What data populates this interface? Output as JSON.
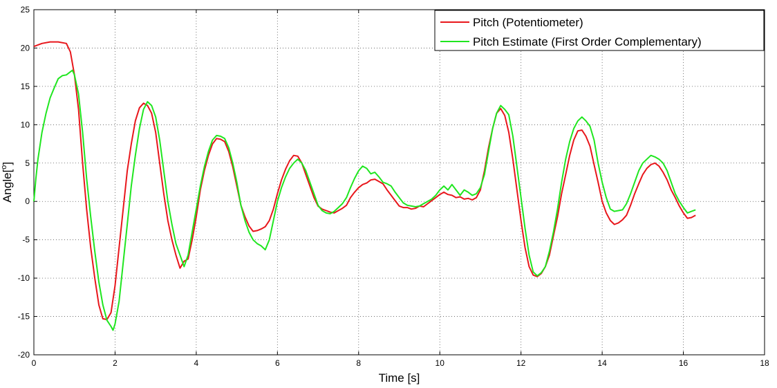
{
  "chart_data": {
    "type": "line",
    "title": "",
    "xlabel": "Time [s]",
    "ylabel": "Angle[",
    "ylabel_sup": "o",
    "ylabel_close": "]",
    "xlim": [
      0,
      18
    ],
    "ylim": [
      -20,
      25
    ],
    "xticks": [
      0,
      2,
      4,
      6,
      8,
      10,
      12,
      14,
      16,
      18
    ],
    "yticks": [
      -20,
      -15,
      -10,
      -5,
      0,
      5,
      10,
      15,
      20,
      25
    ],
    "grid": true,
    "legend_position": "top-right",
    "series": [
      {
        "name": "Pitch (Potentiometer)",
        "color": "#e8161b",
        "points": [
          [
            0,
            20.2
          ],
          [
            0.2,
            20.6
          ],
          [
            0.4,
            20.8
          ],
          [
            0.6,
            20.8
          ],
          [
            0.8,
            20.6
          ],
          [
            0.9,
            19.5
          ],
          [
            1.0,
            16.5
          ],
          [
            1.1,
            12
          ],
          [
            1.2,
            5
          ],
          [
            1.3,
            -1
          ],
          [
            1.4,
            -6
          ],
          [
            1.5,
            -10
          ],
          [
            1.6,
            -13.5
          ],
          [
            1.7,
            -15.3
          ],
          [
            1.8,
            -15.4
          ],
          [
            1.9,
            -14.5
          ],
          [
            2.0,
            -11
          ],
          [
            2.1,
            -6
          ],
          [
            2.2,
            -1
          ],
          [
            2.3,
            4
          ],
          [
            2.4,
            7.5
          ],
          [
            2.5,
            10.5
          ],
          [
            2.6,
            12.2
          ],
          [
            2.7,
            12.8
          ],
          [
            2.8,
            12.5
          ],
          [
            2.9,
            11.5
          ],
          [
            3.0,
            9
          ],
          [
            3.1,
            5
          ],
          [
            3.2,
            1
          ],
          [
            3.3,
            -2.5
          ],
          [
            3.4,
            -5
          ],
          [
            3.5,
            -7
          ],
          [
            3.6,
            -8.7
          ],
          [
            3.7,
            -7.8
          ],
          [
            3.8,
            -7.5
          ],
          [
            3.9,
            -5
          ],
          [
            4.0,
            -2
          ],
          [
            4.1,
            1.5
          ],
          [
            4.2,
            4
          ],
          [
            4.3,
            6
          ],
          [
            4.4,
            7.5
          ],
          [
            4.5,
            8.2
          ],
          [
            4.6,
            8.1
          ],
          [
            4.7,
            7.8
          ],
          [
            4.8,
            6.5
          ],
          [
            4.9,
            4.5
          ],
          [
            5.0,
            2
          ],
          [
            5.1,
            -0.5
          ],
          [
            5.2,
            -2
          ],
          [
            5.3,
            -3.2
          ],
          [
            5.4,
            -3.9
          ],
          [
            5.5,
            -3.8
          ],
          [
            5.6,
            -3.6
          ],
          [
            5.7,
            -3.3
          ],
          [
            5.8,
            -2.5
          ],
          [
            5.9,
            -1
          ],
          [
            6.0,
            1
          ],
          [
            6.1,
            2.8
          ],
          [
            6.2,
            4.2
          ],
          [
            6.3,
            5.3
          ],
          [
            6.4,
            6.0
          ],
          [
            6.5,
            5.9
          ],
          [
            6.6,
            5.0
          ],
          [
            6.7,
            3.5
          ],
          [
            6.8,
            2
          ],
          [
            6.9,
            0.5
          ],
          [
            7.0,
            -0.6
          ],
          [
            7.1,
            -1.0
          ],
          [
            7.2,
            -1.2
          ],
          [
            7.3,
            -1.4
          ],
          [
            7.4,
            -1.5
          ],
          [
            7.5,
            -1.2
          ],
          [
            7.6,
            -0.9
          ],
          [
            7.7,
            -0.5
          ],
          [
            7.8,
            0.5
          ],
          [
            7.9,
            1.2
          ],
          [
            8.0,
            1.8
          ],
          [
            8.1,
            2.2
          ],
          [
            8.2,
            2.4
          ],
          [
            8.3,
            2.8
          ],
          [
            8.4,
            2.9
          ],
          [
            8.5,
            2.6
          ],
          [
            8.6,
            2.3
          ],
          [
            8.7,
            1.5
          ],
          [
            8.8,
            0.8
          ],
          [
            8.9,
            0.1
          ],
          [
            9.0,
            -0.6
          ],
          [
            9.1,
            -0.8
          ],
          [
            9.2,
            -0.8
          ],
          [
            9.3,
            -1.0
          ],
          [
            9.4,
            -0.9
          ],
          [
            9.5,
            -0.6
          ],
          [
            9.6,
            -0.7
          ],
          [
            9.7,
            -0.3
          ],
          [
            9.8,
            0.1
          ],
          [
            9.9,
            0.5
          ],
          [
            10.0,
            0.9
          ],
          [
            10.1,
            1.2
          ],
          [
            10.2,
            0.9
          ],
          [
            10.3,
            0.8
          ],
          [
            10.4,
            0.5
          ],
          [
            10.5,
            0.6
          ],
          [
            10.6,
            0.3
          ],
          [
            10.7,
            0.4
          ],
          [
            10.8,
            0.2
          ],
          [
            10.9,
            0.5
          ],
          [
            11.0,
            1.5
          ],
          [
            11.1,
            4
          ],
          [
            11.2,
            7
          ],
          [
            11.3,
            9.5
          ],
          [
            11.4,
            11.5
          ],
          [
            11.5,
            12.1
          ],
          [
            11.6,
            11.2
          ],
          [
            11.7,
            9
          ],
          [
            11.8,
            5.5
          ],
          [
            11.9,
            1.5
          ],
          [
            12.0,
            -2.5
          ],
          [
            12.1,
            -6
          ],
          [
            12.2,
            -8.5
          ],
          [
            12.3,
            -9.6
          ],
          [
            12.4,
            -9.8
          ],
          [
            12.5,
            -9.4
          ],
          [
            12.6,
            -8.5
          ],
          [
            12.7,
            -7
          ],
          [
            12.8,
            -4.5
          ],
          [
            12.9,
            -2
          ],
          [
            13.0,
            1
          ],
          [
            13.1,
            3.5
          ],
          [
            13.2,
            6
          ],
          [
            13.3,
            8
          ],
          [
            13.4,
            9.2
          ],
          [
            13.5,
            9.3
          ],
          [
            13.6,
            8.5
          ],
          [
            13.7,
            7.2
          ],
          [
            13.8,
            4.8
          ],
          [
            13.9,
            2.5
          ],
          [
            14.0,
            0
          ],
          [
            14.1,
            -1.5
          ],
          [
            14.2,
            -2.5
          ],
          [
            14.3,
            -3
          ],
          [
            14.4,
            -2.8
          ],
          [
            14.5,
            -2.4
          ],
          [
            14.6,
            -1.8
          ],
          [
            14.7,
            -0.5
          ],
          [
            14.8,
            1
          ],
          [
            14.9,
            2.3
          ],
          [
            15.0,
            3.5
          ],
          [
            15.1,
            4.3
          ],
          [
            15.2,
            4.8
          ],
          [
            15.3,
            5.0
          ],
          [
            15.4,
            4.6
          ],
          [
            15.5,
            3.8
          ],
          [
            15.6,
            2.8
          ],
          [
            15.7,
            1.5
          ],
          [
            15.8,
            0.5
          ],
          [
            15.9,
            -0.6
          ],
          [
            16.0,
            -1.5
          ],
          [
            16.1,
            -2.2
          ],
          [
            16.2,
            -2.1
          ],
          [
            16.3,
            -1.8
          ]
        ]
      },
      {
        "name": "Pitch Estimate (First Order Complementary)",
        "color": "#1fe61f",
        "points": [
          [
            0,
            0
          ],
          [
            0.05,
            3
          ],
          [
            0.1,
            5.5
          ],
          [
            0.2,
            9
          ],
          [
            0.3,
            11.5
          ],
          [
            0.4,
            13.5
          ],
          [
            0.5,
            14.8
          ],
          [
            0.6,
            16
          ],
          [
            0.7,
            16.4
          ],
          [
            0.8,
            16.5
          ],
          [
            0.9,
            16.9
          ],
          [
            0.95,
            17.1
          ],
          [
            1.0,
            16.5
          ],
          [
            1.1,
            14
          ],
          [
            1.2,
            9
          ],
          [
            1.3,
            3
          ],
          [
            1.4,
            -2
          ],
          [
            1.5,
            -6.5
          ],
          [
            1.6,
            -10.5
          ],
          [
            1.7,
            -13.5
          ],
          [
            1.8,
            -15.5
          ],
          [
            1.9,
            -16.3
          ],
          [
            1.95,
            -16.8
          ],
          [
            2.0,
            -16
          ],
          [
            2.1,
            -13
          ],
          [
            2.2,
            -8
          ],
          [
            2.3,
            -3
          ],
          [
            2.4,
            2
          ],
          [
            2.5,
            6
          ],
          [
            2.6,
            9.5
          ],
          [
            2.7,
            12
          ],
          [
            2.8,
            13.0
          ],
          [
            2.9,
            12.5
          ],
          [
            3.0,
            11
          ],
          [
            3.1,
            8
          ],
          [
            3.2,
            4
          ],
          [
            3.3,
            0
          ],
          [
            3.4,
            -3
          ],
          [
            3.5,
            -5.5
          ],
          [
            3.6,
            -7
          ],
          [
            3.7,
            -8.5
          ],
          [
            3.8,
            -7
          ],
          [
            3.9,
            -4
          ],
          [
            4.0,
            -1
          ],
          [
            4.1,
            2
          ],
          [
            4.2,
            4.5
          ],
          [
            4.3,
            6.5
          ],
          [
            4.4,
            8
          ],
          [
            4.5,
            8.6
          ],
          [
            4.6,
            8.5
          ],
          [
            4.7,
            8.2
          ],
          [
            4.8,
            7
          ],
          [
            4.9,
            5
          ],
          [
            5.0,
            2.5
          ],
          [
            5.1,
            -0.5
          ],
          [
            5.2,
            -2.5
          ],
          [
            5.3,
            -4
          ],
          [
            5.4,
            -5
          ],
          [
            5.5,
            -5.5
          ],
          [
            5.6,
            -5.8
          ],
          [
            5.7,
            -6.3
          ],
          [
            5.8,
            -5
          ],
          [
            5.9,
            -2.5
          ],
          [
            6.0,
            0
          ],
          [
            6.1,
            1.8
          ],
          [
            6.2,
            3.2
          ],
          [
            6.3,
            4.3
          ],
          [
            6.4,
            5.0
          ],
          [
            6.5,
            5.5
          ],
          [
            6.6,
            5.0
          ],
          [
            6.7,
            4
          ],
          [
            6.8,
            2.5
          ],
          [
            6.9,
            1
          ],
          [
            7.0,
            -0.5
          ],
          [
            7.1,
            -1.2
          ],
          [
            7.2,
            -1.5
          ],
          [
            7.3,
            -1.6
          ],
          [
            7.4,
            -1.3
          ],
          [
            7.5,
            -0.8
          ],
          [
            7.6,
            -0.3
          ],
          [
            7.7,
            0.5
          ],
          [
            7.8,
            1.8
          ],
          [
            7.9,
            3
          ],
          [
            8.0,
            4
          ],
          [
            8.1,
            4.6
          ],
          [
            8.2,
            4.3
          ],
          [
            8.3,
            3.6
          ],
          [
            8.4,
            3.8
          ],
          [
            8.5,
            3.2
          ],
          [
            8.6,
            2.5
          ],
          [
            8.7,
            2.3
          ],
          [
            8.8,
            2
          ],
          [
            8.9,
            1.2
          ],
          [
            9.0,
            0.5
          ],
          [
            9.1,
            -0.2
          ],
          [
            9.2,
            -0.5
          ],
          [
            9.3,
            -0.6
          ],
          [
            9.4,
            -0.7
          ],
          [
            9.5,
            -0.6
          ],
          [
            9.6,
            -0.3
          ],
          [
            9.7,
            0
          ],
          [
            9.8,
            0.3
          ],
          [
            9.9,
            0.8
          ],
          [
            10.0,
            1.5
          ],
          [
            10.1,
            2
          ],
          [
            10.2,
            1.5
          ],
          [
            10.3,
            2.2
          ],
          [
            10.4,
            1.5
          ],
          [
            10.5,
            0.8
          ],
          [
            10.6,
            1.5
          ],
          [
            10.7,
            1.2
          ],
          [
            10.8,
            0.8
          ],
          [
            10.9,
            1
          ],
          [
            11.0,
            1.8
          ],
          [
            11.1,
            3.5
          ],
          [
            11.2,
            6.5
          ],
          [
            11.3,
            9.5
          ],
          [
            11.4,
            11.5
          ],
          [
            11.5,
            12.5
          ],
          [
            11.6,
            12.0
          ],
          [
            11.7,
            11.3
          ],
          [
            11.8,
            8.5
          ],
          [
            11.9,
            4.5
          ],
          [
            12.0,
            0.5
          ],
          [
            12.1,
            -3.5
          ],
          [
            12.2,
            -7
          ],
          [
            12.3,
            -9.2
          ],
          [
            12.4,
            -9.7
          ],
          [
            12.5,
            -9.3
          ],
          [
            12.6,
            -8.5
          ],
          [
            12.7,
            -6.5
          ],
          [
            12.8,
            -4
          ],
          [
            12.9,
            -1
          ],
          [
            13.0,
            2.5
          ],
          [
            13.1,
            5.5
          ],
          [
            13.2,
            7.8
          ],
          [
            13.3,
            9.5
          ],
          [
            13.4,
            10.5
          ],
          [
            13.5,
            11.0
          ],
          [
            13.6,
            10.5
          ],
          [
            13.7,
            9.8
          ],
          [
            13.8,
            8
          ],
          [
            13.9,
            5
          ],
          [
            14.0,
            2.5
          ],
          [
            14.1,
            0.5
          ],
          [
            14.2,
            -1
          ],
          [
            14.3,
            -1.3
          ],
          [
            14.4,
            -1.2
          ],
          [
            14.5,
            -1.1
          ],
          [
            14.6,
            -0.3
          ],
          [
            14.7,
            1
          ],
          [
            14.8,
            2.5
          ],
          [
            14.9,
            4
          ],
          [
            15.0,
            5
          ],
          [
            15.1,
            5.5
          ],
          [
            15.2,
            6
          ],
          [
            15.3,
            5.8
          ],
          [
            15.4,
            5.5
          ],
          [
            15.5,
            5
          ],
          [
            15.6,
            4
          ],
          [
            15.7,
            2.5
          ],
          [
            15.8,
            1
          ],
          [
            15.9,
            0
          ],
          [
            16.0,
            -0.8
          ],
          [
            16.1,
            -1.5
          ],
          [
            16.2,
            -1.3
          ],
          [
            16.3,
            -1.1
          ]
        ]
      }
    ]
  }
}
